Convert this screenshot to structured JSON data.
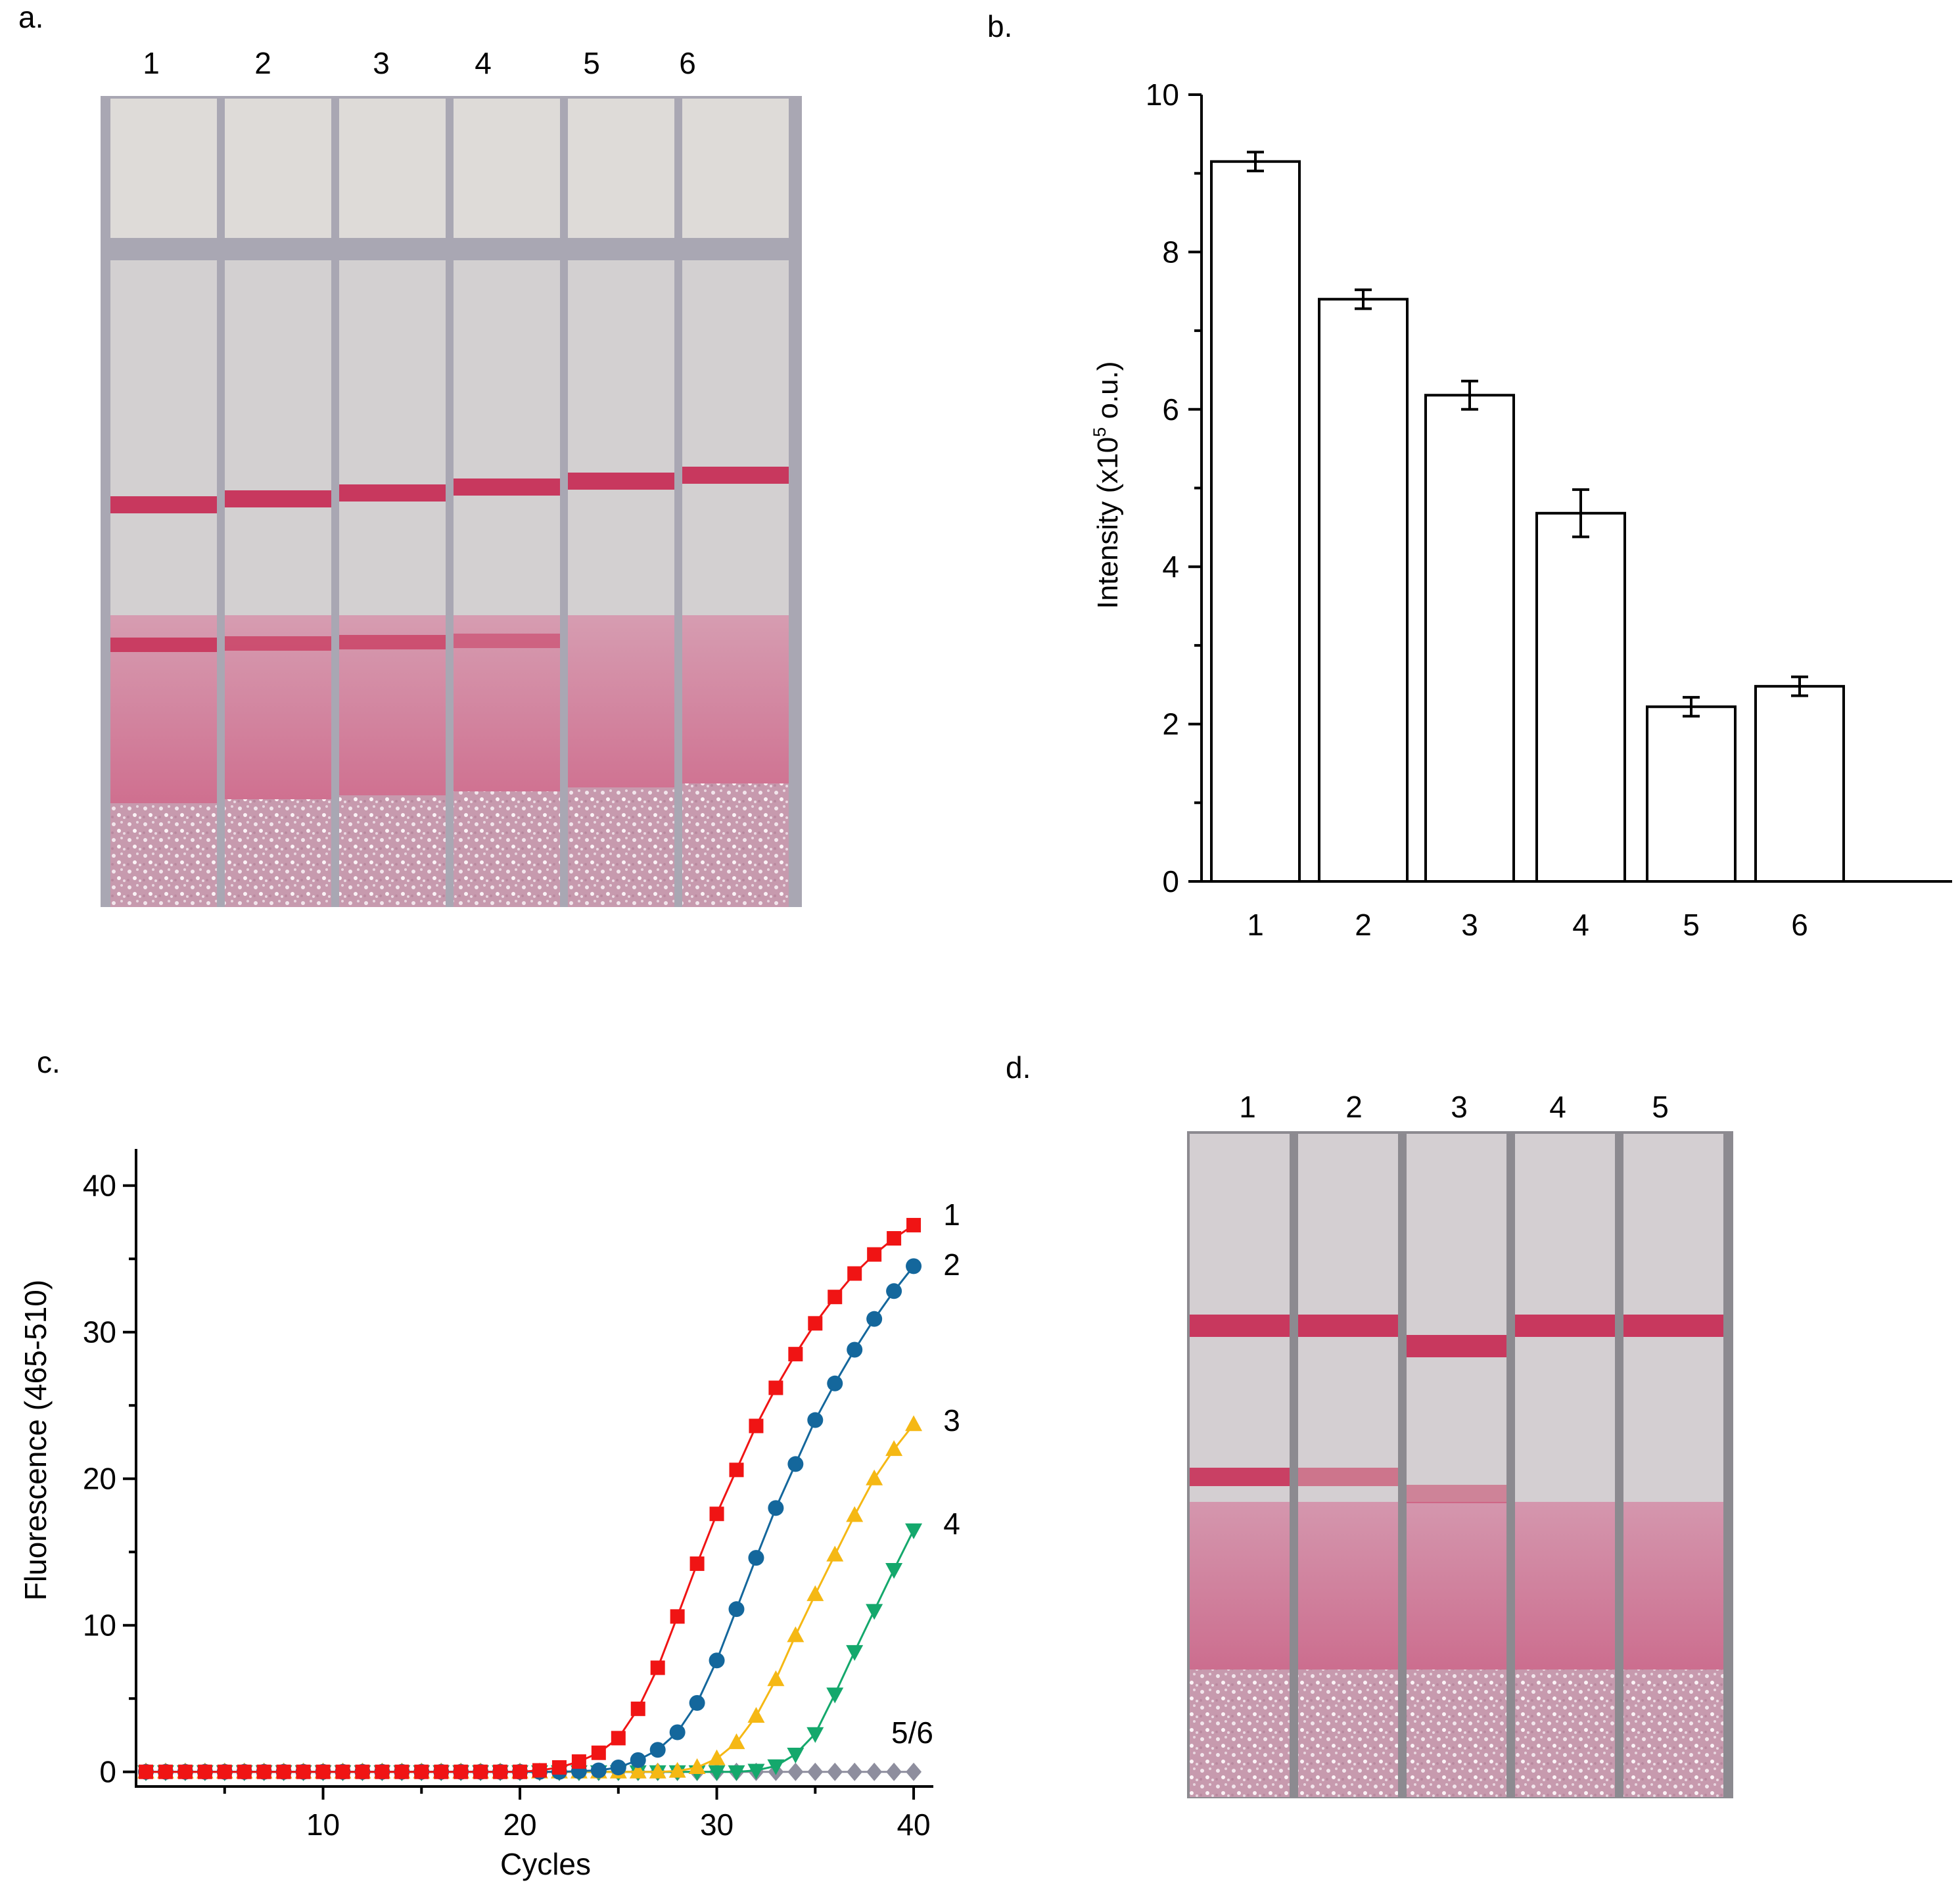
{
  "panel_labels": {
    "a": "a.",
    "b": "b.",
    "c": "c.",
    "d": "d."
  },
  "panel_a": {
    "lane_labels": [
      "1",
      "2",
      "3",
      "4",
      "5",
      "6"
    ],
    "test_line_present": [
      true,
      true,
      true,
      true,
      false,
      false
    ],
    "test_line_strength": [
      0.95,
      0.75,
      0.75,
      0.55,
      0,
      0
    ],
    "colors": {
      "background": "#a9a7b3",
      "pad": "#dedbd8",
      "membrane": "#d3d0d1",
      "line": "#c8385e",
      "sample_pad": "#c79aae"
    }
  },
  "panel_d": {
    "lane_labels": [
      "1",
      "2",
      "3",
      "4",
      "5"
    ],
    "test_line_present": [
      true,
      true,
      true,
      false,
      false
    ],
    "test_line_strength": [
      0.95,
      0.6,
      0.5,
      0,
      0
    ],
    "colors": {
      "background": "#8c8a90",
      "membrane": "#d4cfd2",
      "line": "#c8385e",
      "sample_pad": "#c99cb2"
    }
  },
  "chart_data": [
    {
      "panel": "b",
      "type": "bar",
      "categories": [
        "1",
        "2",
        "3",
        "4",
        "5",
        "6"
      ],
      "values": [
        9.15,
        7.4,
        6.18,
        4.68,
        2.22,
        2.48
      ],
      "errors": [
        0.12,
        0.12,
        0.18,
        0.3,
        0.12,
        0.12
      ],
      "ylabel_prefix": "Intensity (x10",
      "ylabel_sup": "5",
      "ylabel_suffix": " o.u.)",
      "yticks": [
        "0",
        "2",
        "4",
        "6",
        "8",
        "10"
      ],
      "ylim": [
        0,
        10
      ],
      "bar_fill": "#ffffff",
      "bar_stroke": "#000000"
    },
    {
      "panel": "c",
      "type": "line",
      "xlabel": "Cycles",
      "ylabel": "Fluorescence (465-510)",
      "xticks": [
        "10",
        "20",
        "30",
        "40"
      ],
      "yticks": [
        "0",
        "10",
        "20",
        "30",
        "40"
      ],
      "xlim": [
        0.5,
        41
      ],
      "ylim": [
        -1,
        42.5
      ],
      "series": [
        {
          "name": "1",
          "color": "#f01414",
          "marker": "square",
          "values": [
            0,
            0,
            0,
            0,
            0,
            0,
            0,
            0,
            0,
            0,
            0,
            0,
            0,
            0,
            0,
            0,
            0,
            0,
            0,
            0,
            0.1,
            0.3,
            0.7,
            1.3,
            2.3,
            4.3,
            7.1,
            10.6,
            14.2,
            17.6,
            20.6,
            23.6,
            26.2,
            28.5,
            30.6,
            32.4,
            34.0,
            35.3,
            36.4,
            37.3
          ]
        },
        {
          "name": "2",
          "color": "#14679c",
          "marker": "circle",
          "values": [
            0,
            0,
            0,
            0,
            0,
            0,
            0,
            0,
            0,
            0,
            0,
            0,
            0,
            0,
            0,
            0,
            0,
            0,
            0,
            0,
            0,
            0,
            0.05,
            0.1,
            0.3,
            0.8,
            1.5,
            2.7,
            4.7,
            7.6,
            11.1,
            14.6,
            18.0,
            21.0,
            24.0,
            26.5,
            28.8,
            30.9,
            32.8,
            34.5
          ]
        },
        {
          "name": "3",
          "color": "#f5b814",
          "marker": "triangle-up",
          "values": [
            0,
            0,
            0,
            0,
            0,
            0,
            0,
            0,
            0,
            0,
            0,
            0,
            0,
            0,
            0,
            0,
            0,
            0,
            0,
            0,
            0,
            0,
            0,
            0,
            0,
            0,
            0,
            0.05,
            0.3,
            0.9,
            2.0,
            3.8,
            6.3,
            9.3,
            12.1,
            14.8,
            17.5,
            20.0,
            22.0,
            23.7
          ]
        },
        {
          "name": "4",
          "color": "#14a86c",
          "marker": "triangle-down",
          "values": [
            0,
            0,
            0,
            0,
            0,
            0,
            0,
            0,
            0,
            0,
            0,
            0,
            0,
            0,
            0,
            0,
            0,
            0,
            0,
            0,
            0,
            0,
            0,
            0,
            0,
            0,
            0,
            0,
            0,
            0,
            0,
            0.1,
            0.4,
            1.2,
            2.6,
            5.3,
            8.2,
            11.0,
            13.8,
            16.5
          ]
        },
        {
          "name": "5/6",
          "color": "#8e8e9e",
          "marker": "diamond",
          "values": [
            0,
            0,
            0,
            0,
            0,
            0,
            0,
            0,
            0,
            0,
            0,
            0,
            0,
            0,
            0,
            0,
            0,
            0,
            0,
            0,
            0,
            0,
            0,
            0,
            0,
            0,
            0,
            0,
            0,
            0,
            0,
            0,
            0,
            0,
            0,
            0,
            0,
            0,
            0,
            0
          ]
        }
      ]
    }
  ]
}
